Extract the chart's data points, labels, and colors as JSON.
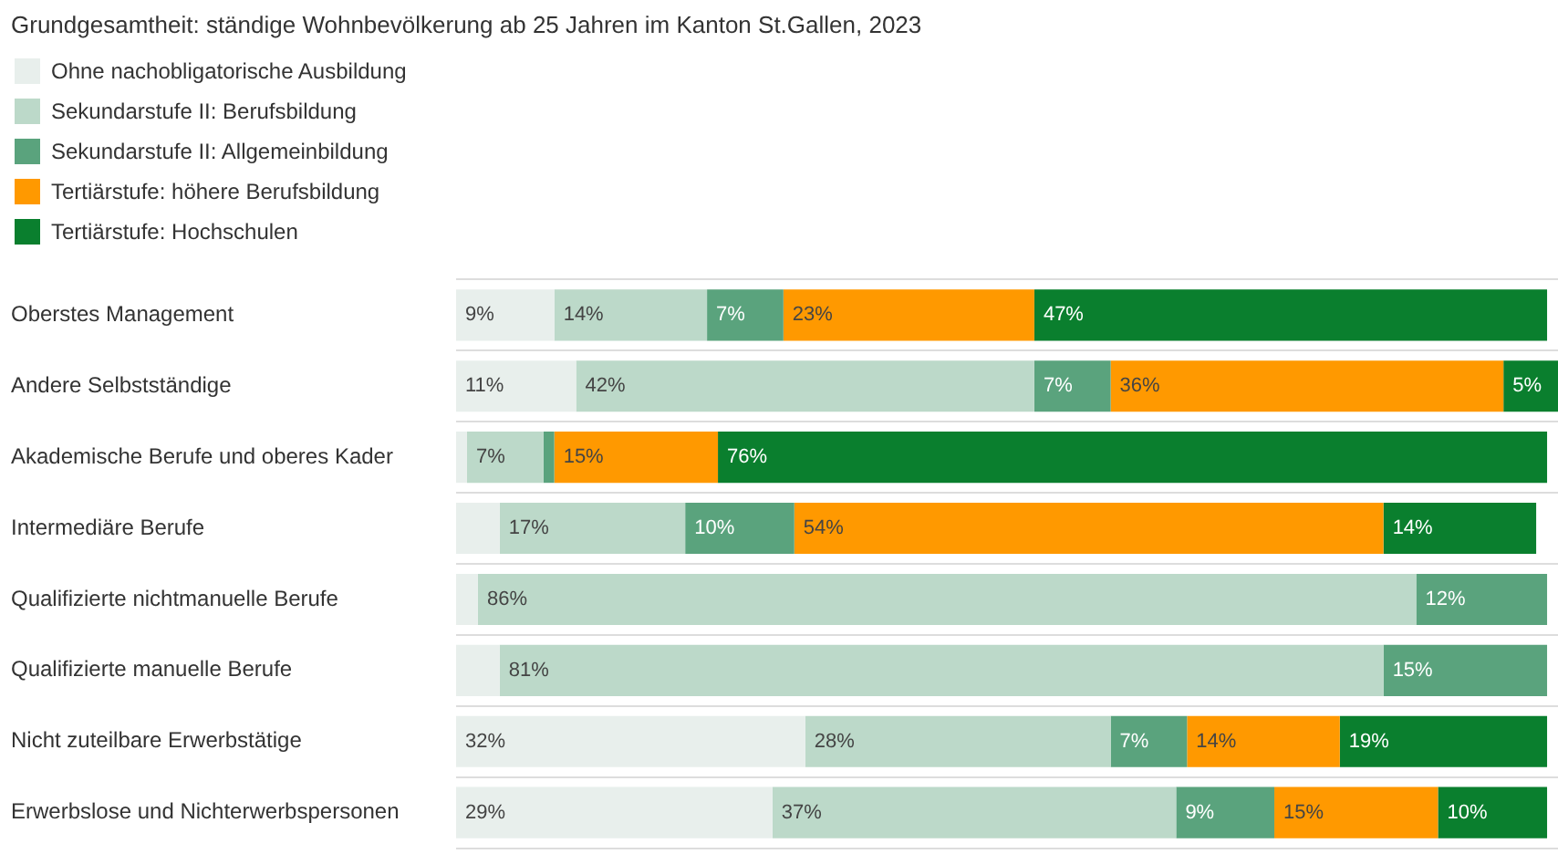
{
  "chart_data": {
    "type": "bar",
    "orientation": "horizontal",
    "stacked": true,
    "title": "Grundgesamtheit: ständige Wohnbevölkerung ab 25 Jahren im Kanton St.Gallen, 2023",
    "legend": "top left",
    "grid": "y",
    "tick_labels": "y",
    "categories": [
      "Oberstes Management",
      "Andere Selbstständige",
      "Akademische Berufe und oberes Kader",
      "Intermediäre Berufe",
      "Qualifizierte nichtmanuelle Berufe",
      "Qualifizierte manuelle Berufe",
      "Nicht zuteilbare Erwerbstätige",
      "Erwerbslose und Nichterwerbspersonen"
    ],
    "series": [
      {
        "name": "Ohne nachobligatorische Ausbildung",
        "color": "#e8efec",
        "values": [
          9,
          11,
          1,
          4,
          2,
          4,
          32,
          29
        ],
        "value_labels": [
          "9%",
          "11%",
          null,
          null,
          null,
          null,
          "32%",
          "29%"
        ]
      },
      {
        "name": "Sekundarstufe II: Berufsbildung",
        "color": "#bcd9c9",
        "values": [
          14,
          42,
          7,
          17,
          86,
          81,
          28,
          37
        ],
        "value_labels": [
          "14%",
          "42%",
          "7%",
          "17%",
          "86%",
          "81%",
          "28%",
          "37%"
        ]
      },
      {
        "name": "Sekundarstufe II: Allgemeinbildung",
        "color": "#5aa37d",
        "values": [
          7,
          7,
          1,
          10,
          12,
          15,
          7,
          9
        ],
        "value_labels": [
          "7%",
          "7%",
          null,
          "10%",
          "12%",
          "15%",
          "7%",
          "9%"
        ]
      },
      {
        "name": "Tertiärstufe: höhere Berufsbildung",
        "color": "#ff9900",
        "values": [
          23,
          36,
          15,
          54,
          0,
          0,
          14,
          15
        ],
        "value_labels": [
          "23%",
          "36%",
          "15%",
          "54%",
          null,
          null,
          "14%",
          "15%"
        ]
      },
      {
        "name": "Tertiärstufe: Hochschulen",
        "color": "#0a7f2e",
        "values": [
          47,
          5,
          76,
          14,
          0,
          0,
          19,
          10
        ],
        "value_labels": [
          "47%",
          "5%",
          "76%",
          "14%",
          null,
          null,
          "19%",
          "10%"
        ]
      }
    ]
  }
}
